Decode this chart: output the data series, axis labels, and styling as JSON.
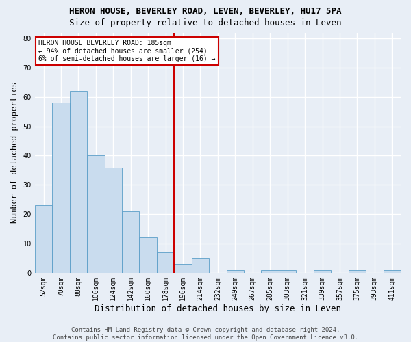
{
  "title": "HERON HOUSE, BEVERLEY ROAD, LEVEN, BEVERLEY, HU17 5PA",
  "subtitle": "Size of property relative to detached houses in Leven",
  "xlabel": "Distribution of detached houses by size in Leven",
  "ylabel": "Number of detached properties",
  "categories": [
    "52sqm",
    "70sqm",
    "88sqm",
    "106sqm",
    "124sqm",
    "142sqm",
    "160sqm",
    "178sqm",
    "196sqm",
    "214sqm",
    "232sqm",
    "249sqm",
    "267sqm",
    "285sqm",
    "303sqm",
    "321sqm",
    "339sqm",
    "357sqm",
    "375sqm",
    "393sqm",
    "411sqm"
  ],
  "values": [
    23,
    58,
    62,
    40,
    36,
    21,
    12,
    7,
    3,
    5,
    0,
    1,
    0,
    1,
    1,
    0,
    1,
    0,
    1,
    0,
    1
  ],
  "bar_color": "#c9dcee",
  "bar_edge_color": "#5a9ec8",
  "background_color": "#e8eef6",
  "grid_color": "#ffffff",
  "vline_x": 7.5,
  "vline_color": "#cc0000",
  "annotation_text": "HERON HOUSE BEVERLEY ROAD: 185sqm\n← 94% of detached houses are smaller (254)\n6% of semi-detached houses are larger (16) →",
  "annotation_box_color": "#ffffff",
  "annotation_box_edge": "#cc0000",
  "footnote": "Contains HM Land Registry data © Crown copyright and database right 2024.\nContains public sector information licensed under the Open Government Licence v3.0.",
  "ylim": [
    0,
    82
  ],
  "yticks": [
    0,
    10,
    20,
    30,
    40,
    50,
    60,
    70,
    80
  ],
  "title_fontsize": 9,
  "subtitle_fontsize": 9,
  "axis_label_fontsize": 8.5,
  "tick_fontsize": 7,
  "footnote_fontsize": 6.5,
  "annotation_fontsize": 7
}
